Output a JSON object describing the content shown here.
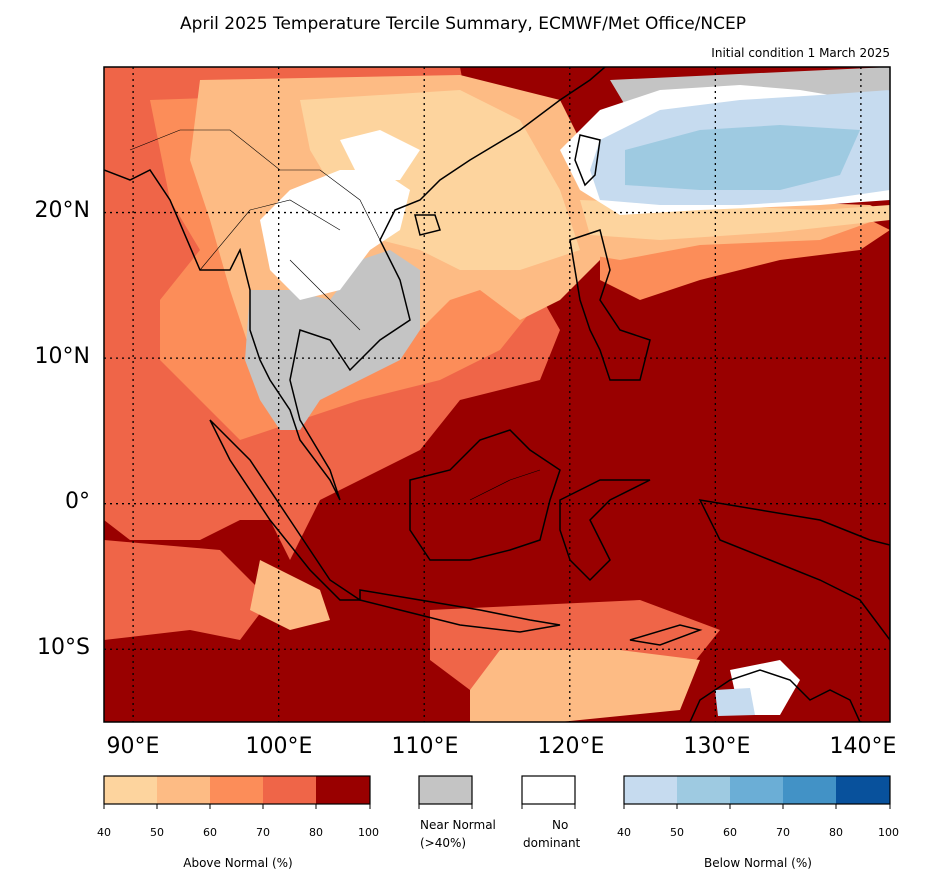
{
  "title": "April 2025 Temperature Tercile Summary, ECMWF/Met Office/NCEP",
  "subtitle": "Initial condition 1 March 2025",
  "map": {
    "lon_range": [
      88,
      142
    ],
    "lat_range": [
      -15,
      30
    ],
    "lon_ticks": [
      "90°E",
      "100°E",
      "110°E",
      "120°E",
      "130°E",
      "140°E"
    ],
    "lat_ticks": [
      "20°N",
      "10°N",
      "0°",
      "10°S"
    ],
    "lon_tick_values": [
      90,
      100,
      110,
      120,
      130,
      140
    ],
    "lat_tick_values": [
      20,
      10,
      0,
      -10
    ],
    "gridlines": "dotted"
  },
  "legend": {
    "above": {
      "title": "Above Normal (%)",
      "ticks": [
        "40",
        "50",
        "60",
        "70",
        "80",
        "100"
      ],
      "colors": [
        "#fdd49e",
        "#fdbb84",
        "#fc8d59",
        "#ef6548",
        "#990000"
      ]
    },
    "near": {
      "label_line1": "Near Normal",
      "label_line2": "(>40%)",
      "color": "#c4c4c4"
    },
    "none": {
      "label_line1": "No",
      "label_line2": "dominant",
      "color": "#ffffff"
    },
    "below": {
      "title": "Below Normal (%)",
      "ticks": [
        "40",
        "50",
        "60",
        "70",
        "80",
        "100"
      ],
      "colors": [
        "#c6dbef",
        "#9ecae1",
        "#6baed6",
        "#4292c6",
        "#08519c"
      ]
    }
  }
}
